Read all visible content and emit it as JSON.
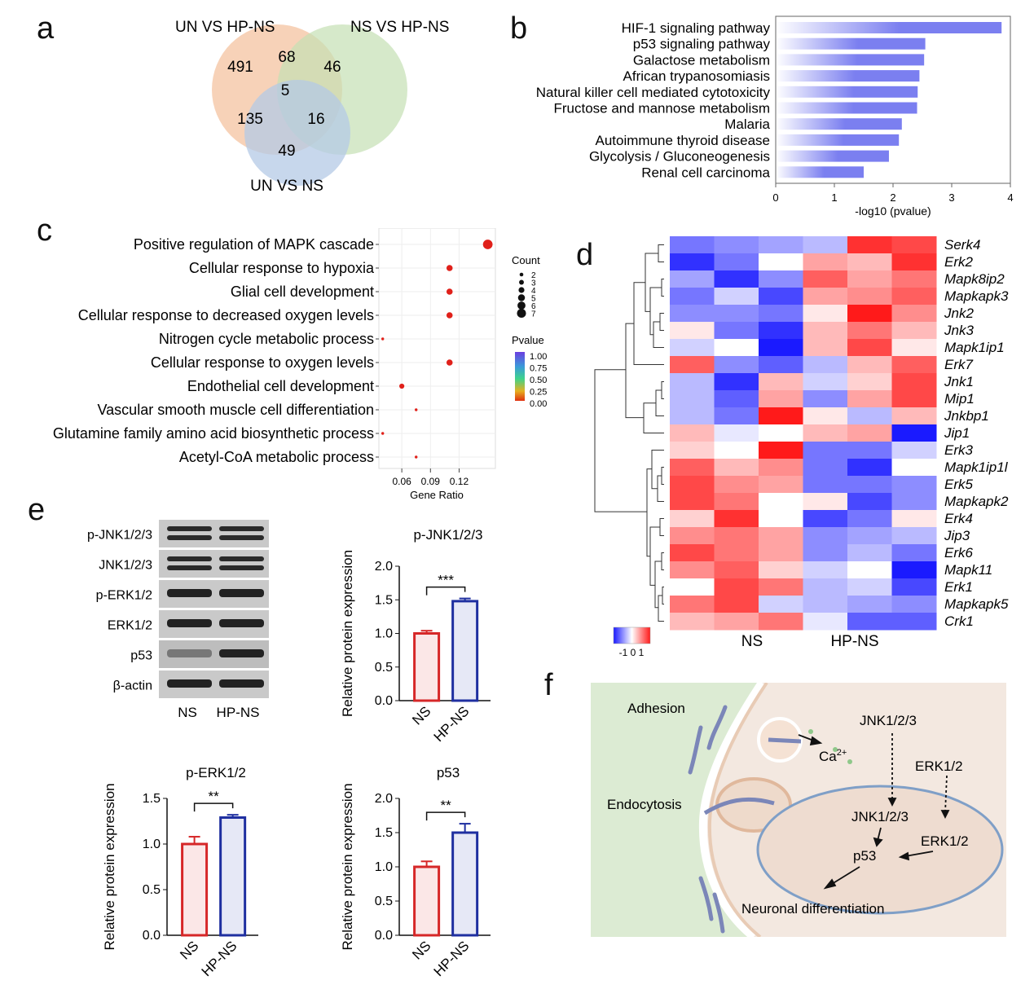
{
  "panel_labels": {
    "a": "a",
    "b": "b",
    "c": "c",
    "d": "d",
    "e": "e",
    "f": "f"
  },
  "venn": {
    "sets": [
      {
        "name": "UN VS HP-NS",
        "color": "#f4c3a0"
      },
      {
        "name": "NS VS HP-NS",
        "color": "#c5e0b3"
      },
      {
        "name": "UN VS NS",
        "color": "#b4c9e6"
      }
    ],
    "counts": {
      "only_a": "491",
      "ab": "68",
      "only_b": "46",
      "abc": "5",
      "ac": "135",
      "bc": "16",
      "only_c": "49"
    }
  },
  "chart_data": [
    {
      "id": "b",
      "type": "bar",
      "orientation": "horizontal",
      "categories": [
        "HIF-1 signaling pathway",
        "p53 signaling pathway",
        "Galactose metabolism",
        "African trypanosomiasis",
        "Natural killer cell mediated cytotoxicity",
        "Fructose and mannose metabolism",
        "Malaria",
        "Autoimmune thyroid disease",
        "Glycolysis / Gluconeogenesis",
        "Renal cell carcinoma"
      ],
      "values": [
        3.85,
        2.55,
        2.53,
        2.45,
        2.42,
        2.41,
        2.15,
        2.1,
        1.93,
        1.5
      ],
      "xlabel": "-log10 (pvalue)",
      "xlim": [
        0,
        4
      ],
      "xticks": [
        "0",
        "1",
        "2",
        "3",
        "4"
      ],
      "color": "#7b7ff0"
    },
    {
      "id": "c",
      "type": "scatter",
      "categories": [
        "Positive regulation of MAPK cascade",
        "Cellular response to hypoxia",
        "Glial cell development",
        "Cellular response to decreased oxygen levels",
        "Nitrogen cycle metabolic process",
        "Cellular response to oxygen levels",
        "Endothelial cell development",
        "Vascular smooth muscle cell differentiation",
        "Glutamine family amino acid biosynthetic process",
        "Acetyl-CoA metabolic process"
      ],
      "x": [
        0.15,
        0.11,
        0.11,
        0.11,
        0.04,
        0.11,
        0.06,
        0.075,
        0.04,
        0.075
      ],
      "count": [
        7,
        4,
        4,
        4,
        1,
        4,
        3,
        1,
        1,
        1
      ],
      "xlabel": "Gene Ratio",
      "xticks": [
        "0.06",
        "0.09",
        "0.12"
      ],
      "xlim": [
        0.036,
        0.158
      ],
      "size_legend": {
        "title": "Count",
        "values": [
          "2",
          "3",
          "4",
          "5",
          "6",
          "7"
        ]
      },
      "color_legend": {
        "title": "Pvalue",
        "ticks": [
          "1.00",
          "0.75",
          "0.50",
          "0.25",
          "0.00"
        ]
      }
    },
    {
      "id": "d",
      "type": "heatmap",
      "rows": [
        "Serk4",
        "Erk2",
        "Mapk8ip2",
        "Mapkapk3",
        "Jnk2",
        "Jnk3",
        "Mapk1ip1",
        "Erk7",
        "Jnk1",
        "Mip1",
        "Jnkbp1",
        "Jip1",
        "Erk3",
        "Mapk1ip1l",
        "Erk5",
        "Mapkapk2",
        "Erk4",
        "Jip3",
        "Erk6",
        "Mapk11",
        "Erk1",
        "Mapkapk5",
        "Crk1"
      ],
      "groups": [
        "NS",
        "HP-NS"
      ],
      "values": [
        [
          -0.6,
          -0.5,
          -0.4,
          -0.3,
          0.9,
          0.8
        ],
        [
          -0.9,
          -0.6,
          0.0,
          0.4,
          0.3,
          0.9
        ],
        [
          -0.4,
          -0.9,
          -0.5,
          0.7,
          0.4,
          0.6
        ],
        [
          -0.6,
          -0.2,
          -0.8,
          0.4,
          0.5,
          0.7
        ],
        [
          -0.5,
          -0.5,
          -0.6,
          0.1,
          1.0,
          0.5
        ],
        [
          0.1,
          -0.6,
          -0.9,
          0.3,
          0.6,
          0.3
        ],
        [
          -0.2,
          0.0,
          -1.0,
          0.3,
          0.8,
          0.1
        ],
        [
          0.7,
          -0.5,
          -0.7,
          -0.3,
          0.3,
          0.7
        ],
        [
          -0.3,
          -0.9,
          0.3,
          -0.2,
          0.2,
          0.8
        ],
        [
          -0.3,
          -0.7,
          0.4,
          -0.5,
          0.4,
          0.8
        ],
        [
          -0.3,
          -0.6,
          1.0,
          0.1,
          -0.3,
          0.3
        ],
        [
          0.3,
          -0.1,
          0.0,
          0.3,
          0.4,
          -1.0
        ],
        [
          0.2,
          0.0,
          1.0,
          -0.6,
          -0.6,
          -0.2
        ],
        [
          0.7,
          0.3,
          0.5,
          -0.6,
          -0.9,
          0.0
        ],
        [
          0.8,
          0.5,
          0.4,
          -0.6,
          -0.6,
          -0.5
        ],
        [
          0.8,
          0.6,
          0.0,
          0.1,
          -0.8,
          -0.5
        ],
        [
          0.2,
          0.9,
          0.0,
          -0.8,
          -0.6,
          0.1
        ],
        [
          0.5,
          0.6,
          0.4,
          -0.5,
          -0.4,
          -0.3
        ],
        [
          0.8,
          0.6,
          0.4,
          -0.5,
          -0.3,
          -0.6
        ],
        [
          0.5,
          0.7,
          0.2,
          -0.2,
          0.0,
          -1.0
        ],
        [
          0.0,
          0.8,
          0.6,
          -0.3,
          -0.2,
          -0.8
        ],
        [
          0.6,
          0.8,
          -0.2,
          -0.3,
          -0.4,
          -0.5
        ],
        [
          0.3,
          0.4,
          0.6,
          -0.1,
          -0.7,
          -0.7
        ]
      ],
      "scale": {
        "min": -1,
        "max": 1,
        "label": "-1 0 1"
      }
    },
    {
      "id": "e1",
      "type": "bar",
      "title": "p-JNK1/2/3",
      "categories": [
        "NS",
        "HP-NS"
      ],
      "values": [
        1.0,
        1.48
      ],
      "errors": [
        0.04,
        0.04
      ],
      "ylabel": "Relative protein expression",
      "ylim": [
        0,
        2.0
      ],
      "yticks": [
        "0.0",
        "0.5",
        "1.0",
        "1.5",
        "2.0"
      ],
      "significance": "***"
    },
    {
      "id": "e2",
      "type": "bar",
      "title": "p-ERK1/2",
      "categories": [
        "NS",
        "HP-NS"
      ],
      "values": [
        1.0,
        1.29
      ],
      "errors": [
        0.08,
        0.03
      ],
      "ylabel": "Relative protein expression",
      "ylim": [
        0,
        1.5
      ],
      "yticks": [
        "0.0",
        "0.5",
        "1.0",
        "1.5"
      ],
      "significance": "**"
    },
    {
      "id": "e3",
      "type": "bar",
      "title": "p53",
      "categories": [
        "NS",
        "HP-NS"
      ],
      "values": [
        1.0,
        1.5
      ],
      "errors": [
        0.08,
        0.13
      ],
      "ylabel": "Relative protein expression",
      "ylim": [
        0,
        2.0
      ],
      "yticks": [
        "0.0",
        "0.5",
        "1.0",
        "1.5",
        "2.0"
      ],
      "significance": "**"
    }
  ],
  "blot": {
    "rows": [
      "p-JNK1/2/3",
      "JNK1/2/3",
      "p-ERK1/2",
      "ERK1/2",
      "p53",
      "β-actin"
    ],
    "lanes": [
      "NS",
      "HP-NS"
    ]
  },
  "bar_colors": {
    "ns": "#d62728",
    "hpns": "#1f2fa0"
  },
  "schematic": {
    "adhesion": "Adhesion",
    "endocytosis": "Endocytosis",
    "jnk_top": "JNK1/2/3",
    "erk_top": "ERK1/2",
    "ca": "Ca",
    "ca_sup": "2+",
    "jnk_in": "JNK1/2/3",
    "erk_in": "ERK1/2",
    "p53": "p53",
    "outcome": "Neuronal differentiation"
  }
}
